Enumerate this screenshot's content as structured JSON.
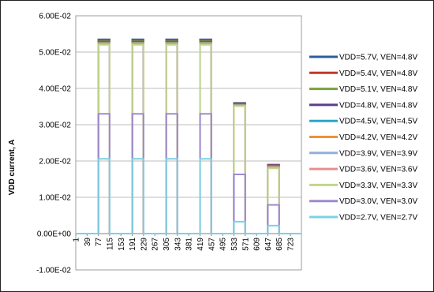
{
  "chart_data": {
    "type": "line",
    "title": "",
    "xlabel": "",
    "ylabel": "VDD current, A",
    "ylim": [
      -0.01,
      0.06
    ],
    "yticks": [
      "6.00E-02",
      "5.00E-02",
      "4.00E-02",
      "3.00E-02",
      "2.00E-02",
      "1.00E-02",
      "0.00E+00",
      "-1.00E-02"
    ],
    "ytick_values": [
      0.06,
      0.05,
      0.04,
      0.03,
      0.02,
      0.01,
      0.0,
      -0.01
    ],
    "xlim": [
      1,
      760
    ],
    "xticks": [
      "1",
      "39",
      "77",
      "115",
      "153",
      "191",
      "229",
      "267",
      "305",
      "343",
      "381",
      "419",
      "457",
      "495",
      "533",
      "571",
      "609",
      "647",
      "685",
      "723"
    ],
    "xtick_values": [
      1,
      39,
      77,
      115,
      153,
      191,
      229,
      267,
      305,
      343,
      381,
      419,
      457,
      495,
      533,
      571,
      609,
      647,
      685,
      723
    ],
    "grid": "horizontal",
    "legend_position": "right",
    "pulses": [
      {
        "x_start": 77,
        "x_end": 115
      },
      {
        "x_start": 191,
        "x_end": 229
      },
      {
        "x_start": 305,
        "x_end": 343
      },
      {
        "x_start": 419,
        "x_end": 457
      },
      {
        "x_start": 533,
        "x_end": 571
      },
      {
        "x_start": 647,
        "x_end": 685
      }
    ],
    "series": [
      {
        "name": "VDD=5.7V, VEN=4.8V",
        "color": "#2a5f9e",
        "levels": [
          0.0535,
          0.0535,
          0.0535,
          0.0535,
          0.036,
          0.019
        ]
      },
      {
        "name": "VDD=5.4V, VEN=4.8V",
        "color": "#c0392b",
        "levels": [
          0.0533,
          0.0533,
          0.0533,
          0.0533,
          0.0358,
          0.0188
        ]
      },
      {
        "name": "VDD=5.1V, VEN=4.8V",
        "color": "#7aa03a",
        "levels": [
          0.0531,
          0.0531,
          0.0531,
          0.0531,
          0.0357,
          0.0187
        ]
      },
      {
        "name": "VDD=4.8V, VEN=4.8V",
        "color": "#5b3f8c",
        "levels": [
          0.0529,
          0.0529,
          0.0529,
          0.0529,
          0.0356,
          0.0186
        ]
      },
      {
        "name": "VDD=4.5V, VEN=4.5V",
        "color": "#2aa6c8",
        "levels": [
          0.0527,
          0.0527,
          0.0527,
          0.0527,
          0.0355,
          0.0185
        ]
      },
      {
        "name": "VDD=4.2V, VEN=4.2V",
        "color": "#f0912f",
        "levels": [
          0.0525,
          0.0525,
          0.0525,
          0.0525,
          0.0354,
          0.0184
        ]
      },
      {
        "name": "VDD=3.9V, VEN=3.9V",
        "color": "#8fb0e0",
        "levels": [
          0.0523,
          0.0523,
          0.0523,
          0.0523,
          0.0353,
          0.0183
        ]
      },
      {
        "name": "VDD=3.6V, VEN=3.6V",
        "color": "#e89090",
        "levels": [
          0.0521,
          0.0521,
          0.0521,
          0.0521,
          0.0352,
          0.0182
        ]
      },
      {
        "name": "VDD=3.3V, VEN=3.3V",
        "color": "#c2d68a",
        "levels": [
          0.052,
          0.052,
          0.052,
          0.052,
          0.0351,
          0.018
        ]
      },
      {
        "name": "VDD=3.0V, VEN=3.0V",
        "color": "#a08ad0",
        "levels": [
          0.033,
          0.033,
          0.033,
          0.033,
          0.0163,
          0.0079
        ]
      },
      {
        "name": "VDD=2.7V, VEN=2.7V",
        "color": "#7cd0e8",
        "levels": [
          0.0206,
          0.0206,
          0.0206,
          0.0206,
          0.0033,
          0.0022
        ]
      }
    ]
  }
}
